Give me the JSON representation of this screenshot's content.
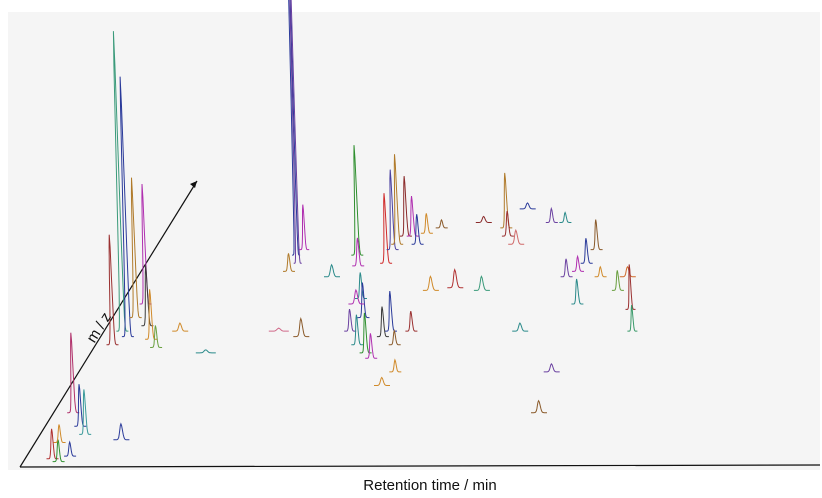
{
  "chart_data": {
    "type": "line",
    "title": "",
    "xlabel": "Retention time / min",
    "ylabel": "m / z",
    "grid": false,
    "legend": false,
    "series": [
      {
        "rt": 0.045,
        "mz": 0.03,
        "height": 30,
        "width": 0.006,
        "color": "#b03030"
      },
      {
        "rt": 0.055,
        "mz": 0.02,
        "height": 22,
        "width": 0.006,
        "color": "#2f8f2f"
      },
      {
        "rt": 0.07,
        "mz": 0.04,
        "height": 14,
        "width": 0.006,
        "color": "#2a3a9a"
      },
      {
        "rt": 0.05,
        "mz": 0.09,
        "height": 18,
        "width": 0.006,
        "color": "#d08a2a"
      },
      {
        "rt": 0.06,
        "mz": 0.2,
        "height": 80,
        "width": 0.006,
        "color": "#b0306a"
      },
      {
        "rt": 0.075,
        "mz": 0.15,
        "height": 42,
        "width": 0.006,
        "color": "#2a3a9a"
      },
      {
        "rt": 0.085,
        "mz": 0.12,
        "height": 45,
        "width": 0.006,
        "color": "#3a9a9a"
      },
      {
        "rt": 0.095,
        "mz": 0.45,
        "height": 110,
        "width": 0.006,
        "color": "#9a3030"
      },
      {
        "rt": 0.105,
        "mz": 0.5,
        "height": 300,
        "width": 0.006,
        "color": "#3a9a7a"
      },
      {
        "rt": 0.115,
        "mz": 0.48,
        "height": 260,
        "width": 0.006,
        "color": "#2a3a9a"
      },
      {
        "rt": 0.12,
        "mz": 0.55,
        "height": 140,
        "width": 0.006,
        "color": "#b07a2a"
      },
      {
        "rt": 0.13,
        "mz": 0.6,
        "height": 120,
        "width": 0.006,
        "color": "#b030b0"
      },
      {
        "rt": 0.14,
        "mz": 0.52,
        "height": 60,
        "width": 0.006,
        "color": "#3a3a3a"
      },
      {
        "rt": 0.15,
        "mz": 0.47,
        "height": 50,
        "width": 0.006,
        "color": "#d08a2a"
      },
      {
        "rt": 0.16,
        "mz": 0.44,
        "height": 22,
        "width": 0.006,
        "color": "#6aa040"
      },
      {
        "rt": 0.14,
        "mz": 0.1,
        "height": 16,
        "width": 0.008,
        "color": "#2a3a9a"
      },
      {
        "rt": 0.19,
        "mz": 0.5,
        "height": 8,
        "width": 0.008,
        "color": "#d08a2a"
      },
      {
        "rt": 0.235,
        "mz": 0.42,
        "height": 3,
        "width": 0.01,
        "color": "#2a8a8a"
      },
      {
        "rt": 0.335,
        "mz": 0.78,
        "height": 460,
        "width": 0.004,
        "color": "#2a3a9a"
      },
      {
        "rt": 0.34,
        "mz": 0.75,
        "height": 440,
        "width": 0.004,
        "color": "#6a40a0"
      },
      {
        "rt": 0.345,
        "mz": 0.8,
        "height": 45,
        "width": 0.005,
        "color": "#b030b0"
      },
      {
        "rt": 0.33,
        "mz": 0.72,
        "height": 18,
        "width": 0.006,
        "color": "#b07a2a"
      },
      {
        "rt": 0.335,
        "mz": 0.5,
        "height": 3,
        "width": 0.01,
        "color": "#d06a8a"
      },
      {
        "rt": 0.37,
        "mz": 0.48,
        "height": 18,
        "width": 0.008,
        "color": "#8a5a2a"
      },
      {
        "rt": 0.395,
        "mz": 0.7,
        "height": 12,
        "width": 0.008,
        "color": "#2a8a8a"
      },
      {
        "rt": 0.425,
        "mz": 0.78,
        "height": 110,
        "width": 0.006,
        "color": "#2f8f2f"
      },
      {
        "rt": 0.43,
        "mz": 0.74,
        "height": 28,
        "width": 0.006,
        "color": "#b030b0"
      },
      {
        "rt": 0.445,
        "mz": 0.62,
        "height": 26,
        "width": 0.006,
        "color": "#2a8a8a"
      },
      {
        "rt": 0.455,
        "mz": 0.55,
        "height": 35,
        "width": 0.006,
        "color": "#2a3a9a"
      },
      {
        "rt": 0.47,
        "mz": 0.75,
        "height": 70,
        "width": 0.006,
        "color": "#d02a2a"
      },
      {
        "rt": 0.475,
        "mz": 0.8,
        "height": 80,
        "width": 0.006,
        "color": "#4a40a0"
      },
      {
        "rt": 0.48,
        "mz": 0.82,
        "height": 90,
        "width": 0.006,
        "color": "#b07a2a"
      },
      {
        "rt": 0.49,
        "mz": 0.85,
        "height": 60,
        "width": 0.006,
        "color": "#8a2a2a"
      },
      {
        "rt": 0.5,
        "mz": 0.85,
        "height": 40,
        "width": 0.006,
        "color": "#b030b0"
      },
      {
        "rt": 0.51,
        "mz": 0.82,
        "height": 30,
        "width": 0.006,
        "color": "#2a3a9a"
      },
      {
        "rt": 0.52,
        "mz": 0.86,
        "height": 20,
        "width": 0.006,
        "color": "#d08a2a"
      },
      {
        "rt": 0.54,
        "mz": 0.88,
        "height": 8,
        "width": 0.006,
        "color": "#8a5a2a"
      },
      {
        "rt": 0.44,
        "mz": 0.5,
        "height": 22,
        "width": 0.006,
        "color": "#6a40a0"
      },
      {
        "rt": 0.455,
        "mz": 0.45,
        "height": 30,
        "width": 0.006,
        "color": "#2a8a8a"
      },
      {
        "rt": 0.47,
        "mz": 0.42,
        "height": 40,
        "width": 0.006,
        "color": "#2f8f2f"
      },
      {
        "rt": 0.48,
        "mz": 0.4,
        "height": 25,
        "width": 0.006,
        "color": "#b030b0"
      },
      {
        "rt": 0.49,
        "mz": 0.48,
        "height": 30,
        "width": 0.006,
        "color": "#3a3a3a"
      },
      {
        "rt": 0.5,
        "mz": 0.5,
        "height": 40,
        "width": 0.006,
        "color": "#2a3a9a"
      },
      {
        "rt": 0.51,
        "mz": 0.45,
        "height": 14,
        "width": 0.006,
        "color": "#8a5a2a"
      },
      {
        "rt": 0.52,
        "mz": 0.35,
        "height": 12,
        "width": 0.006,
        "color": "#d08a2a"
      },
      {
        "rt": 0.53,
        "mz": 0.5,
        "height": 20,
        "width": 0.006,
        "color": "#9a3030"
      },
      {
        "rt": 0.44,
        "mz": 0.6,
        "height": 14,
        "width": 0.008,
        "color": "#b030b0"
      },
      {
        "rt": 0.505,
        "mz": 0.3,
        "height": 8,
        "width": 0.008,
        "color": "#d08a2a"
      },
      {
        "rt": 0.545,
        "mz": 0.65,
        "height": 14,
        "width": 0.008,
        "color": "#d08a2a"
      },
      {
        "rt": 0.58,
        "mz": 0.66,
        "height": 18,
        "width": 0.008,
        "color": "#b03030"
      },
      {
        "rt": 0.6,
        "mz": 0.9,
        "height": 6,
        "width": 0.008,
        "color": "#8a2a2a"
      },
      {
        "rt": 0.635,
        "mz": 0.88,
        "height": 55,
        "width": 0.006,
        "color": "#b07a2a"
      },
      {
        "rt": 0.64,
        "mz": 0.85,
        "height": 25,
        "width": 0.006,
        "color": "#9a3030"
      },
      {
        "rt": 0.655,
        "mz": 0.82,
        "height": 14,
        "width": 0.008,
        "color": "#d06a6a"
      },
      {
        "rt": 0.62,
        "mz": 0.65,
        "height": 14,
        "width": 0.008,
        "color": "#3a9a7a"
      },
      {
        "rt": 0.66,
        "mz": 0.95,
        "height": 6,
        "width": 0.008,
        "color": "#2a3a9a"
      },
      {
        "rt": 0.7,
        "mz": 0.9,
        "height": 14,
        "width": 0.006,
        "color": "#6a40a0"
      },
      {
        "rt": 0.72,
        "mz": 0.9,
        "height": 10,
        "width": 0.006,
        "color": "#2a8a8a"
      },
      {
        "rt": 0.69,
        "mz": 0.5,
        "height": 8,
        "width": 0.008,
        "color": "#2a8a8a"
      },
      {
        "rt": 0.74,
        "mz": 0.7,
        "height": 18,
        "width": 0.006,
        "color": "#6a40a0"
      },
      {
        "rt": 0.755,
        "mz": 0.72,
        "height": 15,
        "width": 0.006,
        "color": "#b030b0"
      },
      {
        "rt": 0.765,
        "mz": 0.75,
        "height": 25,
        "width": 0.006,
        "color": "#2a3a9a"
      },
      {
        "rt": 0.775,
        "mz": 0.8,
        "height": 30,
        "width": 0.006,
        "color": "#8a5a2a"
      },
      {
        "rt": 0.765,
        "mz": 0.6,
        "height": 25,
        "width": 0.006,
        "color": "#2a8a8a"
      },
      {
        "rt": 0.79,
        "mz": 0.7,
        "height": 10,
        "width": 0.006,
        "color": "#d08a2a"
      },
      {
        "rt": 0.75,
        "mz": 0.35,
        "height": 8,
        "width": 0.008,
        "color": "#6a40a0"
      },
      {
        "rt": 0.745,
        "mz": 0.2,
        "height": 12,
        "width": 0.008,
        "color": "#8a5a2a"
      },
      {
        "rt": 0.82,
        "mz": 0.65,
        "height": 20,
        "width": 0.006,
        "color": "#6aa040"
      },
      {
        "rt": 0.83,
        "mz": 0.7,
        "height": 10,
        "width": 0.008,
        "color": "#d06a2a"
      },
      {
        "rt": 0.845,
        "mz": 0.58,
        "height": 45,
        "width": 0.005,
        "color": "#9a3030"
      },
      {
        "rt": 0.855,
        "mz": 0.5,
        "height": 26,
        "width": 0.005,
        "color": "#3a9a6a"
      }
    ]
  }
}
